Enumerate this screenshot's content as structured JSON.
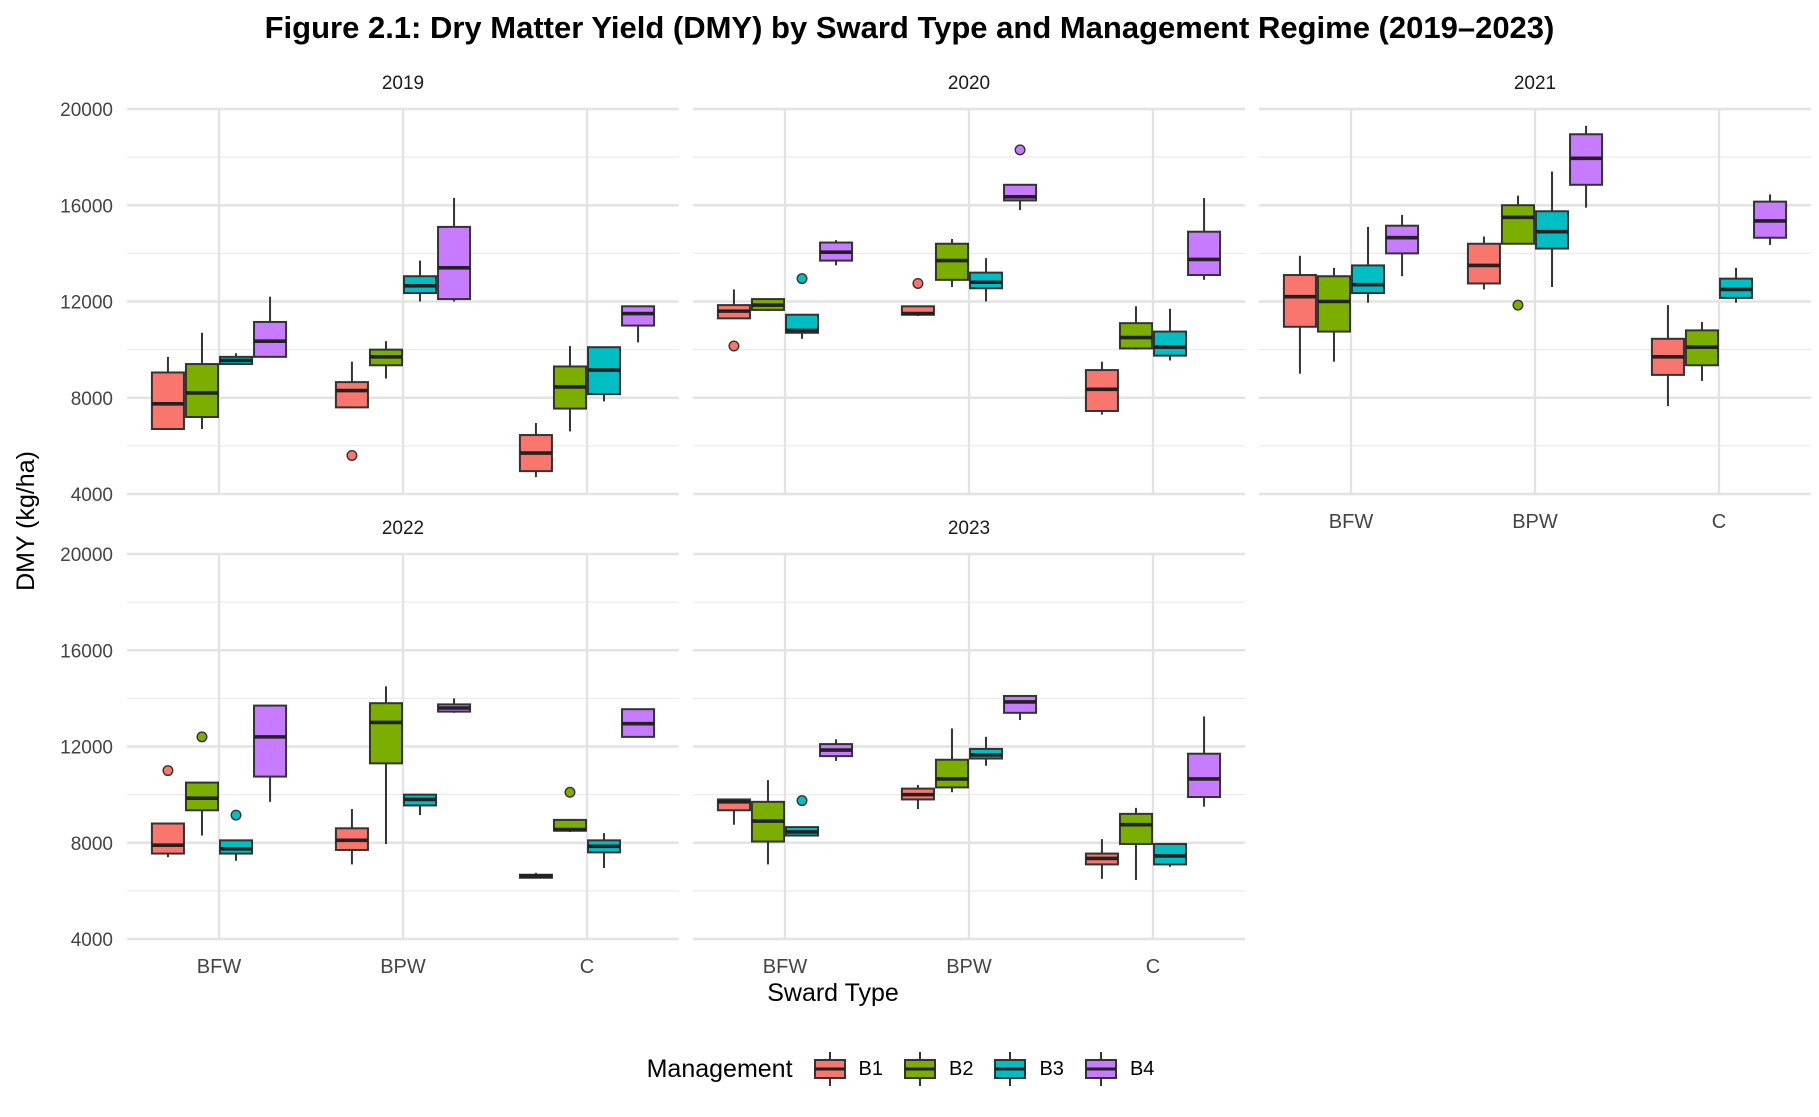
{
  "chart_data": {
    "type": "boxplot",
    "title": "Figure 2.1: Dry Matter Yield (DMY) by Sward Type and Management Regime (2019–2023)",
    "xlabel": "Sward Type",
    "ylabel": "DMY (kg/ha)",
    "categories": [
      "BFW",
      "BPW",
      "C"
    ],
    "ylim": [
      4000,
      20000
    ],
    "yticks": [
      4000,
      8000,
      12000,
      16000,
      20000
    ],
    "legend": {
      "title": "Management",
      "position": "bottom",
      "items": [
        {
          "label": "B1",
          "color": "#F8766D"
        },
        {
          "label": "B2",
          "color": "#7CAE00"
        },
        {
          "label": "B3",
          "color": "#00BFC4"
        },
        {
          "label": "B4",
          "color": "#C77CFF"
        }
      ]
    },
    "grid": true,
    "panels": [
      {
        "year": "2019",
        "boxes": {
          "BFW": [
            {
              "min": 6700,
              "q1": 6700,
              "median": 7750,
              "q3": 9050,
              "max": 9700,
              "outliers": []
            },
            {
              "min": 6700,
              "q1": 7200,
              "median": 8200,
              "q3": 9400,
              "max": 10700,
              "outliers": []
            },
            {
              "min": 9400,
              "q1": 9400,
              "median": 9550,
              "q3": 9700,
              "max": 9850,
              "outliers": []
            },
            {
              "min": 9700,
              "q1": 9700,
              "median": 10350,
              "q3": 11150,
              "max": 12200,
              "outliers": []
            }
          ],
          "BPW": [
            {
              "min": 7600,
              "q1": 7600,
              "median": 8300,
              "q3": 8650,
              "max": 9500,
              "outliers": [
                5600
              ]
            },
            {
              "min": 8800,
              "q1": 9350,
              "median": 9700,
              "q3": 10000,
              "max": 10350,
              "outliers": []
            },
            {
              "min": 12000,
              "q1": 12350,
              "median": 12650,
              "q3": 13050,
              "max": 13700,
              "outliers": []
            },
            {
              "min": 12000,
              "q1": 12100,
              "median": 13400,
              "q3": 15100,
              "max": 16300,
              "outliers": []
            }
          ],
          "C": [
            {
              "min": 4700,
              "q1": 4950,
              "median": 5700,
              "q3": 6450,
              "max": 6950,
              "outliers": []
            },
            {
              "min": 6600,
              "q1": 7550,
              "median": 8450,
              "q3": 9300,
              "max": 10150,
              "outliers": []
            },
            {
              "min": 7850,
              "q1": 8150,
              "median": 9150,
              "q3": 10100,
              "max": 10100,
              "outliers": []
            },
            {
              "min": 10300,
              "q1": 11000,
              "median": 11500,
              "q3": 11800,
              "max": 11800,
              "outliers": []
            }
          ]
        }
      },
      {
        "year": "2020",
        "boxes": {
          "BFW": [
            {
              "min": 11300,
              "q1": 11300,
              "median": 11600,
              "q3": 11850,
              "max": 12500,
              "outliers": [
                10150
              ]
            },
            {
              "min": 11600,
              "q1": 11650,
              "median": 11850,
              "q3": 12100,
              "max": 12100,
              "outliers": []
            },
            {
              "min": 10450,
              "q1": 10700,
              "median": 10800,
              "q3": 11450,
              "max": 11450,
              "outliers": [
                12950
              ]
            },
            {
              "min": 13500,
              "q1": 13700,
              "median": 14050,
              "q3": 14450,
              "max": 14550,
              "outliers": []
            }
          ],
          "BPW": [
            {
              "min": 11400,
              "q1": 11450,
              "median": 11500,
              "q3": 11800,
              "max": 11800,
              "outliers": [
                12750
              ]
            },
            {
              "min": 12600,
              "q1": 12900,
              "median": 13700,
              "q3": 14400,
              "max": 14600,
              "outliers": []
            },
            {
              "min": 12000,
              "q1": 12550,
              "median": 12800,
              "q3": 13200,
              "max": 13800,
              "outliers": []
            },
            {
              "min": 15800,
              "q1": 16200,
              "median": 16350,
              "q3": 16850,
              "max": 16850,
              "outliers": [
                18300
              ]
            }
          ],
          "C": [
            {
              "min": 7300,
              "q1": 7450,
              "median": 8350,
              "q3": 9150,
              "max": 9500,
              "outliers": []
            },
            {
              "min": 10000,
              "q1": 10050,
              "median": 10500,
              "q3": 11100,
              "max": 11800,
              "outliers": []
            },
            {
              "min": 9550,
              "q1": 9750,
              "median": 10100,
              "q3": 10750,
              "max": 11700,
              "outliers": []
            },
            {
              "min": 12900,
              "q1": 13100,
              "median": 13750,
              "q3": 14900,
              "max": 16300,
              "outliers": []
            }
          ]
        }
      },
      {
        "year": "2021",
        "boxes": {
          "BFW": [
            {
              "min": 9000,
              "q1": 10950,
              "median": 12200,
              "q3": 13100,
              "max": 13900,
              "outliers": []
            },
            {
              "min": 9500,
              "q1": 10750,
              "median": 12000,
              "q3": 13050,
              "max": 13400,
              "outliers": []
            },
            {
              "min": 11950,
              "q1": 12350,
              "median": 12700,
              "q3": 13500,
              "max": 15100,
              "outliers": []
            },
            {
              "min": 13050,
              "q1": 14000,
              "median": 14650,
              "q3": 15150,
              "max": 15600,
              "outliers": []
            }
          ],
          "BPW": [
            {
              "min": 12500,
              "q1": 12750,
              "median": 13500,
              "q3": 14400,
              "max": 14700,
              "outliers": []
            },
            {
              "min": 14400,
              "q1": 14400,
              "median": 15500,
              "q3": 16000,
              "max": 16400,
              "outliers": [
                11850
              ]
            },
            {
              "min": 12600,
              "q1": 14200,
              "median": 14900,
              "q3": 15750,
              "max": 17400,
              "outliers": []
            },
            {
              "min": 15900,
              "q1": 16850,
              "median": 17950,
              "q3": 18950,
              "max": 19300,
              "outliers": []
            }
          ],
          "C": [
            {
              "min": 7650,
              "q1": 8950,
              "median": 9700,
              "q3": 10450,
              "max": 11850,
              "outliers": []
            },
            {
              "min": 8700,
              "q1": 9350,
              "median": 10100,
              "q3": 10800,
              "max": 11150,
              "outliers": []
            },
            {
              "min": 11950,
              "q1": 12150,
              "median": 12500,
              "q3": 12950,
              "max": 13400,
              "outliers": []
            },
            {
              "min": 14350,
              "q1": 14650,
              "median": 15350,
              "q3": 16150,
              "max": 16450,
              "outliers": []
            }
          ]
        }
      },
      {
        "year": "2022",
        "boxes": {
          "BFW": [
            {
              "min": 7400,
              "q1": 7550,
              "median": 7900,
              "q3": 8800,
              "max": 8800,
              "outliers": [
                11000
              ]
            },
            {
              "min": 8300,
              "q1": 9350,
              "median": 9850,
              "q3": 10500,
              "max": 10500,
              "outliers": [
                12400
              ]
            },
            {
              "min": 7250,
              "q1": 7550,
              "median": 7750,
              "q3": 8100,
              "max": 8100,
              "outliers": [
                9150
              ]
            },
            {
              "min": 9700,
              "q1": 10750,
              "median": 12400,
              "q3": 13700,
              "max": 13700,
              "outliers": []
            }
          ],
          "BPW": [
            {
              "min": 7100,
              "q1": 7700,
              "median": 8100,
              "q3": 8600,
              "max": 9400,
              "outliers": []
            },
            {
              "min": 7950,
              "q1": 11300,
              "median": 13000,
              "q3": 13800,
              "max": 14500,
              "outliers": []
            },
            {
              "min": 9150,
              "q1": 9550,
              "median": 9800,
              "q3": 10000,
              "max": 10000,
              "outliers": []
            },
            {
              "min": 13400,
              "q1": 13450,
              "median": 13600,
              "q3": 13750,
              "max": 14000,
              "outliers": []
            }
          ],
          "C": [
            {
              "min": 6550,
              "q1": 6580,
              "median": 6620,
              "q3": 6670,
              "max": 6750,
              "outliers": []
            },
            {
              "min": 8450,
              "q1": 8500,
              "median": 8550,
              "q3": 8950,
              "max": 8950,
              "outliers": [
                10100
              ]
            },
            {
              "min": 6950,
              "q1": 7600,
              "median": 7850,
              "q3": 8100,
              "max": 8400,
              "outliers": []
            },
            {
              "min": 12400,
              "q1": 12400,
              "median": 12950,
              "q3": 13550,
              "max": 13550,
              "outliers": []
            }
          ]
        }
      },
      {
        "year": "2023",
        "boxes": {
          "BFW": [
            {
              "min": 8750,
              "q1": 9350,
              "median": 9700,
              "q3": 9800,
              "max": 9800,
              "outliers": []
            },
            {
              "min": 7100,
              "q1": 8050,
              "median": 8900,
              "q3": 9700,
              "max": 10600,
              "outliers": []
            },
            {
              "min": 8300,
              "q1": 8300,
              "median": 8450,
              "q3": 8650,
              "max": 8650,
              "outliers": [
                9750
              ]
            },
            {
              "min": 11400,
              "q1": 11600,
              "median": 11850,
              "q3": 12100,
              "max": 12300,
              "outliers": []
            }
          ],
          "BPW": [
            {
              "min": 9400,
              "q1": 9800,
              "median": 10000,
              "q3": 10250,
              "max": 10400,
              "outliers": []
            },
            {
              "min": 10100,
              "q1": 10300,
              "median": 10650,
              "q3": 11450,
              "max": 12750,
              "outliers": []
            },
            {
              "min": 11200,
              "q1": 11500,
              "median": 11650,
              "q3": 11900,
              "max": 12400,
              "outliers": []
            },
            {
              "min": 13100,
              "q1": 13400,
              "median": 13850,
              "q3": 14100,
              "max": 14100,
              "outliers": []
            }
          ],
          "C": [
            {
              "min": 6500,
              "q1": 7100,
              "median": 7350,
              "q3": 7550,
              "max": 8150,
              "outliers": []
            },
            {
              "min": 6450,
              "q1": 7950,
              "median": 8750,
              "q3": 9200,
              "max": 9450,
              "outliers": []
            },
            {
              "min": 7000,
              "q1": 7100,
              "median": 7450,
              "q3": 7950,
              "max": 7950,
              "outliers": []
            },
            {
              "min": 9500,
              "q1": 9900,
              "median": 10650,
              "q3": 11700,
              "max": 13250,
              "outliers": []
            }
          ]
        }
      }
    ]
  }
}
